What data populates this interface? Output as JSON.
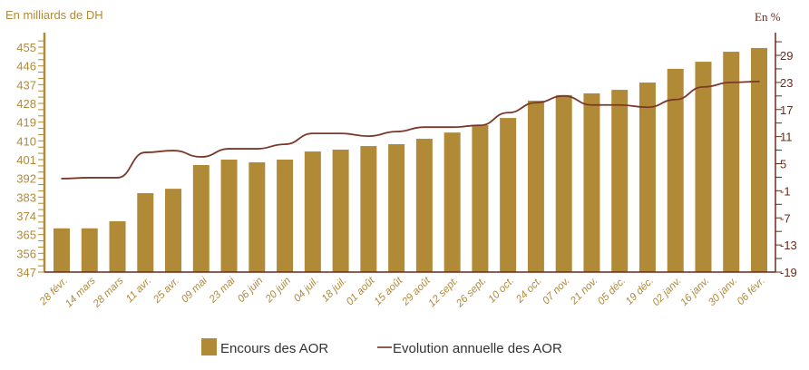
{
  "chart_data": {
    "type": "bar",
    "ylabel_left": "En milliards de DH",
    "ylabel_right": "En %",
    "categories": [
      "28 févr.",
      "14 mars",
      "28 mars",
      "11 avr.",
      "25 avr.",
      "09 mai",
      "23 mai",
      "06 juin",
      "20 juin",
      "04 juil.",
      "18 juil.",
      "01 août",
      "15 août",
      "29 août",
      "12 sept.",
      "26 sept.",
      "10 oct.",
      "24 oct.",
      "07 nov.",
      "21 nov.",
      "05 déc.",
      "19 déc.",
      "02 janv.",
      "16 janv.",
      "30 janv.",
      "06 févr."
    ],
    "left_axis": {
      "ylim": [
        347,
        455
      ],
      "ticks": [
        347,
        356,
        365,
        374,
        383,
        392,
        401,
        410,
        419,
        428,
        437,
        446,
        455
      ]
    },
    "right_axis": {
      "ylim": [
        -19,
        29
      ],
      "ticks": [
        -19,
        -13,
        -7,
        -1,
        5,
        11,
        17,
        23,
        29
      ]
    },
    "series": [
      {
        "name": "Encours des AOR",
        "type": "bar",
        "axis": "left",
        "color": "#b08a36",
        "values": [
          368,
          368,
          371.4,
          384.9,
          387,
          398.4,
          401,
          399.7,
          401,
          404.9,
          405.8,
          407.5,
          408.4,
          411,
          414,
          417.6,
          421,
          429.3,
          432,
          432.8,
          434.5,
          438,
          444.6,
          448,
          452.8,
          454.6
        ]
      },
      {
        "name": "Evolution annuelle des AOR",
        "type": "line",
        "axis": "right",
        "color": "#7a3a2a",
        "values": [
          1.7,
          1.9,
          1.9,
          7.5,
          7.9,
          6.5,
          8.3,
          8.3,
          9.3,
          11.7,
          11.7,
          11.1,
          12.1,
          13.1,
          13.1,
          13.5,
          16.3,
          18.5,
          20,
          18,
          18,
          17.5,
          19.2,
          22,
          23,
          23.2
        ]
      }
    ],
    "legend": "bottom-center"
  }
}
